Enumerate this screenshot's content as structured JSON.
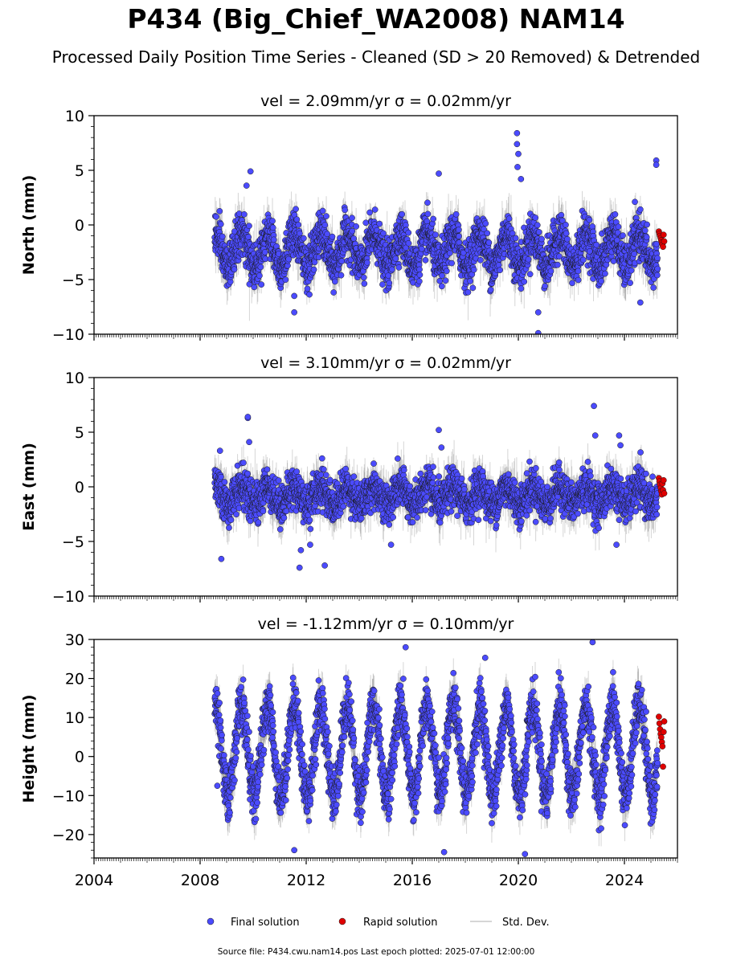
{
  "chart_data": {
    "type": "scatter",
    "title": "P434 (Big_Chief_WA2008) NAM14",
    "subtitle": "Processed Daily Position Time Series - Cleaned (SD > 20 Removed) & Detrended",
    "x_ticks": [
      "2004",
      "2008",
      "2012",
      "2016",
      "2020",
      "2024"
    ],
    "xlim": [
      2004,
      2026
    ],
    "legend": {
      "placement": "bottom-center",
      "entries": [
        "Final solution",
        "Rapid solution",
        "Std. Dev."
      ]
    },
    "colors": {
      "final": "#4B4BFF",
      "rapid": "#E00000",
      "std_dev": "#B0B0B0"
    },
    "footer": "Source file: P434.cwu.nam14.pos  Last epoch plotted: 2025-07-01 12:00:00",
    "panels": [
      {
        "id": "north",
        "ylabel": "North (mm)",
        "subtitle": "vel = 2.09mm/yr   σ = 0.02mm/yr",
        "ylim": [
          -10,
          10
        ],
        "y_ticks": [
          "−10",
          "−5",
          "0",
          "5",
          "10"
        ],
        "series": [
          {
            "name": "Final solution",
            "start": 2008.55,
            "end": 2025.25,
            "mean": -2.3,
            "seasonal_amplitude": 1.5,
            "noise_sd": 1.0,
            "outliers": [
              [
                2009.9,
                4.9
              ],
              [
                2009.75,
                3.6
              ],
              [
                2011.55,
                -6.5
              ],
              [
                2011.55,
                -8.0
              ],
              [
                2017.0,
                4.7
              ],
              [
                2019.95,
                8.4
              ],
              [
                2019.95,
                7.4
              ],
              [
                2020.0,
                6.5
              ],
              [
                2019.97,
                5.3
              ],
              [
                2020.1,
                4.2
              ],
              [
                2020.75,
                -8.0
              ],
              [
                2020.75,
                -9.9
              ],
              [
                2024.6,
                -7.1
              ],
              [
                2025.2,
                5.9
              ],
              [
                2025.2,
                5.5
              ]
            ]
          },
          {
            "name": "Rapid solution",
            "start": 2025.3,
            "end": 2025.5,
            "values": [
              -0.6,
              -0.8,
              -1.0,
              -1.2,
              -1.4,
              -1.6,
              -1.8,
              -2.0,
              -0.9,
              -1.5
            ]
          }
        ]
      },
      {
        "id": "east",
        "ylabel": "East (mm)",
        "subtitle": "vel = 3.10mm/yr   σ = 0.02mm/yr",
        "ylim": [
          -10,
          10
        ],
        "y_ticks": [
          "−10",
          "−5",
          "0",
          "5",
          "10"
        ],
        "series": [
          {
            "name": "Final solution",
            "start": 2008.55,
            "end": 2025.25,
            "mean": -0.8,
            "seasonal_amplitude": 0.8,
            "noise_sd": 0.9,
            "outliers": [
              [
                2008.75,
                3.3
              ],
              [
                2008.8,
                -6.6
              ],
              [
                2009.8,
                6.3
              ],
              [
                2009.8,
                6.4
              ],
              [
                2009.85,
                4.1
              ],
              [
                2011.75,
                -7.4
              ],
              [
                2011.8,
                -5.8
              ],
              [
                2012.15,
                -5.3
              ],
              [
                2012.6,
                2.6
              ],
              [
                2012.7,
                -7.2
              ],
              [
                2015.2,
                -5.3
              ],
              [
                2017.0,
                5.2
              ],
              [
                2017.1,
                3.6
              ],
              [
                2022.85,
                7.4
              ],
              [
                2022.9,
                4.7
              ],
              [
                2023.8,
                4.7
              ],
              [
                2023.85,
                3.8
              ],
              [
                2023.7,
                -5.3
              ]
            ]
          },
          {
            "name": "Rapid solution",
            "start": 2025.3,
            "end": 2025.5,
            "values": [
              0.8,
              0.5,
              0.2,
              -0.1,
              -0.4,
              -0.7,
              0.3,
              -0.3,
              0.6,
              -0.6
            ]
          }
        ]
      },
      {
        "id": "height",
        "ylabel": "Height (mm)",
        "subtitle": "vel = -1.12mm/yr   σ = 0.10mm/yr",
        "ylim": [
          -26,
          30
        ],
        "y_ticks": [
          "−20",
          "−10",
          "0",
          "10",
          "20",
          "30"
        ],
        "series": [
          {
            "name": "Final solution",
            "start": 2008.55,
            "end": 2025.25,
            "mean": 1.5,
            "seasonal_amplitude": 11.5,
            "noise_sd": 3.2,
            "outliers": [
              [
                2011.55,
                -24.0
              ],
              [
                2015.75,
                28.0
              ],
              [
                2017.2,
                -24.5
              ],
              [
                2018.75,
                25.3
              ],
              [
                2020.25,
                -25.0
              ],
              [
                2022.8,
                29.3
              ],
              [
                2008.65,
                -7.5
              ]
            ]
          },
          {
            "name": "Rapid solution",
            "start": 2025.3,
            "end": 2025.5,
            "values": [
              10.2,
              8.5,
              7.0,
              5.8,
              4.9,
              3.7,
              2.6,
              -2.6,
              6.3,
              9.0
            ]
          }
        ]
      }
    ]
  }
}
